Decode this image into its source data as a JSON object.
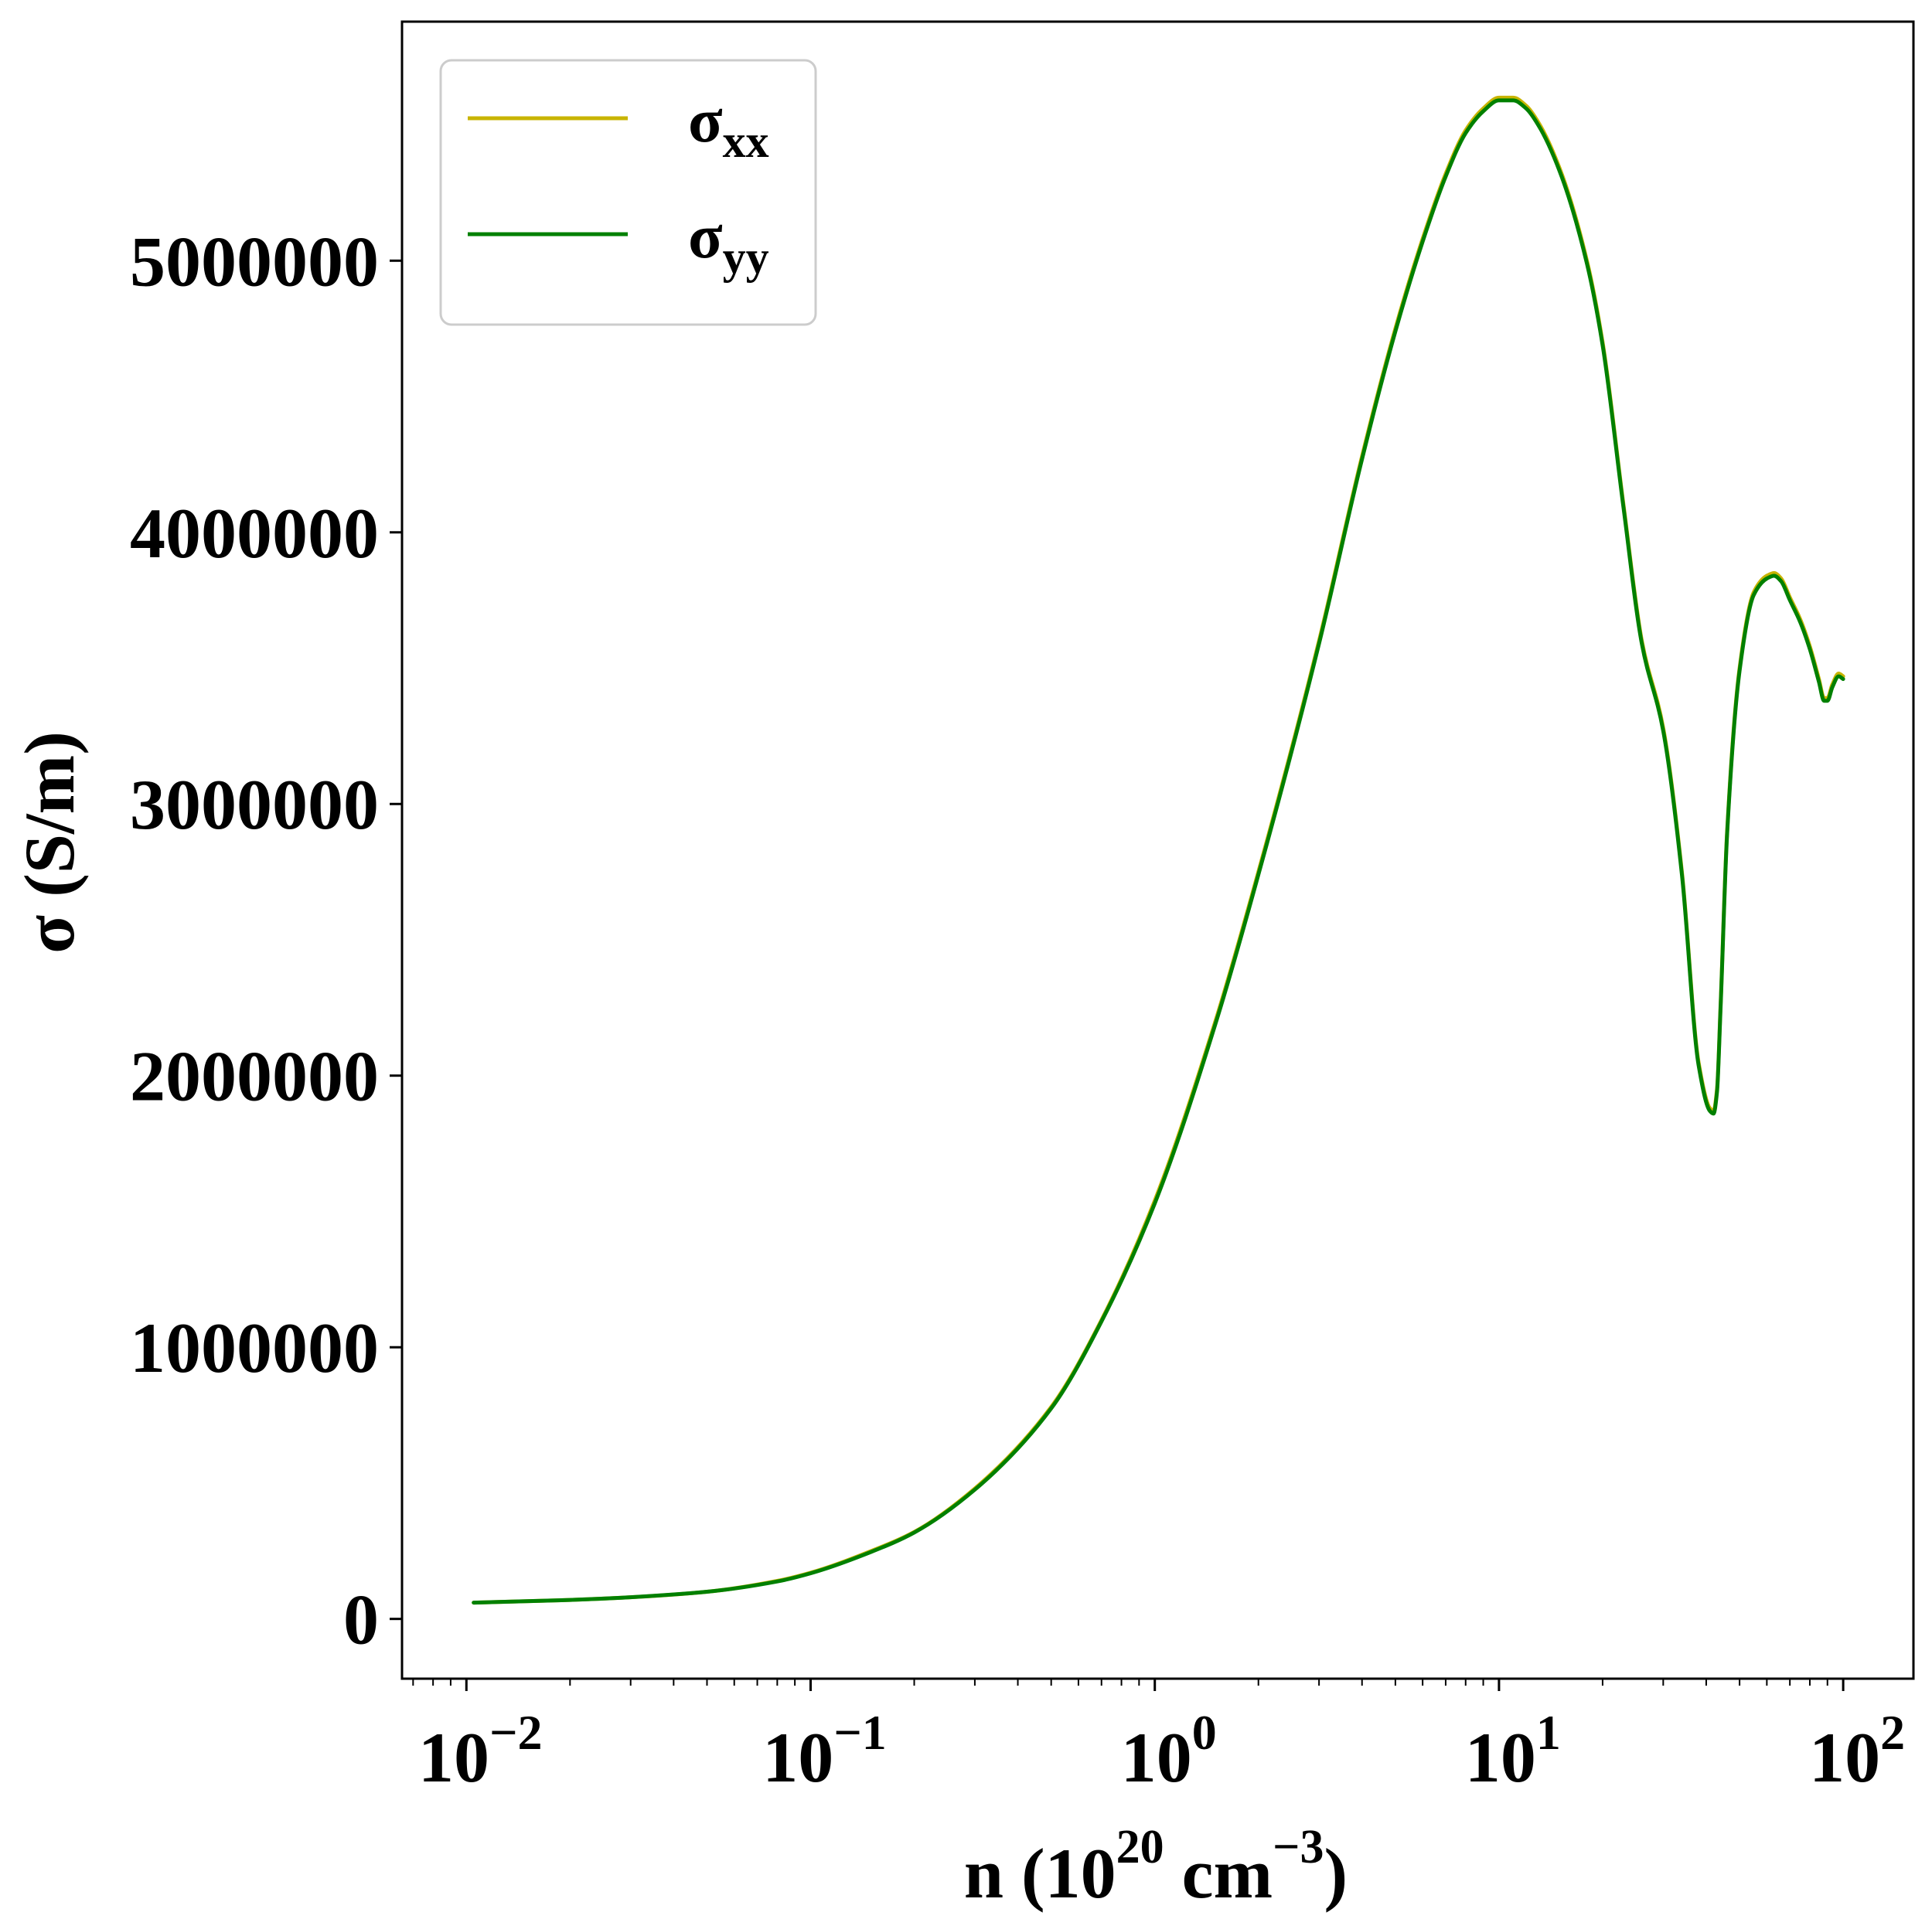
{
  "chart_data": {
    "type": "line",
    "x_scale": "log",
    "xlim": [
      0.0065,
      160
    ],
    "ylim": [
      -220000,
      5880000
    ],
    "xlabel": {
      "base": "n (10",
      "exp1": "20",
      "mid": " cm",
      "exp2": "−3",
      "end": ")"
    },
    "ylabel": "σ (S/m)",
    "x_ticks": [
      {
        "value": 0.01,
        "base": "10",
        "exp": "−2"
      },
      {
        "value": 0.1,
        "base": "10",
        "exp": "−1"
      },
      {
        "value": 1,
        "base": "10",
        "exp": "0"
      },
      {
        "value": 10,
        "base": "10",
        "exp": "1"
      },
      {
        "value": 100,
        "base": "10",
        "exp": "2"
      }
    ],
    "y_ticks": [
      {
        "value": 0,
        "label": "0"
      },
      {
        "value": 1000000,
        "label": "1000000"
      },
      {
        "value": 2000000,
        "label": "2000000"
      },
      {
        "value": 3000000,
        "label": "3000000"
      },
      {
        "value": 4000000,
        "label": "4000000"
      },
      {
        "value": 5000000,
        "label": "5000000"
      }
    ],
    "legend": {
      "position": "top-left",
      "entries": [
        {
          "symbol": "σ",
          "sub": "xx",
          "series_index": 0
        },
        {
          "symbol": "σ",
          "sub": "yy",
          "series_index": 1
        }
      ]
    },
    "series": [
      {
        "name": "σxx",
        "color": "#c8b400",
        "x": [
          0.0105,
          0.02,
          0.03,
          0.05,
          0.08,
          0.1,
          0.15,
          0.2,
          0.3,
          0.5,
          0.7,
          1.0,
          1.5,
          2.0,
          3.0,
          4.0,
          5.0,
          6.0,
          7.0,
          8.0,
          9.0,
          10.0,
          11.0,
          12.0,
          13.0,
          15.0,
          18.0,
          20.0,
          23.0,
          26.0,
          30.0,
          34.0,
          38.0,
          41.0,
          42.0,
          43.0,
          44.0,
          46.0,
          50.0,
          55.0,
          60.0,
          63.0,
          66.0,
          70.0,
          75.0,
          80.0,
          85.0,
          88.0,
          90.0,
          93.0,
          97.0,
          100.0
        ],
        "y": [
          60000,
          70000,
          80000,
          100000,
          140000,
          170000,
          250000,
          320000,
          480000,
          780000,
          1100000,
          1540000,
          2200000,
          2750000,
          3600000,
          4280000,
          4750000,
          5080000,
          5320000,
          5480000,
          5560000,
          5600000,
          5600000,
          5570000,
          5510000,
          5340000,
          5000000,
          4700000,
          4100000,
          3600000,
          3280000,
          2750000,
          2050000,
          1880000,
          1870000,
          1950000,
          2250000,
          2900000,
          3500000,
          3780000,
          3840000,
          3850000,
          3830000,
          3760000,
          3680000,
          3580000,
          3460000,
          3390000,
          3390000,
          3440000,
          3480000,
          3470000
        ]
      },
      {
        "name": "σyy",
        "color": "#008000",
        "x": [
          0.0105,
          0.02,
          0.03,
          0.05,
          0.08,
          0.1,
          0.15,
          0.2,
          0.3,
          0.5,
          0.7,
          1.0,
          1.5,
          2.0,
          3.0,
          4.0,
          5.0,
          6.0,
          7.0,
          8.0,
          9.0,
          10.0,
          11.0,
          12.0,
          13.0,
          15.0,
          18.0,
          20.0,
          23.0,
          26.0,
          30.0,
          34.0,
          38.0,
          41.0,
          42.0,
          43.0,
          44.0,
          46.0,
          50.0,
          55.0,
          60.0,
          63.0,
          66.0,
          70.0,
          75.0,
          80.0,
          85.0,
          88.0,
          90.0,
          93.0,
          97.0,
          100.0
        ],
        "y": [
          60000,
          70000,
          80000,
          100000,
          138000,
          168000,
          247000,
          318000,
          476000,
          775000,
          1095000,
          1530000,
          2190000,
          2740000,
          3590000,
          4270000,
          4740000,
          5070000,
          5310000,
          5470000,
          5550000,
          5590000,
          5590000,
          5560000,
          5500000,
          5330000,
          4990000,
          4690000,
          4090000,
          3590000,
          3270000,
          2740000,
          2040000,
          1870000,
          1860000,
          1940000,
          2240000,
          2890000,
          3490000,
          3770000,
          3830000,
          3840000,
          3820000,
          3750000,
          3670000,
          3570000,
          3450000,
          3380000,
          3380000,
          3430000,
          3470000,
          3460000
        ]
      }
    ]
  }
}
